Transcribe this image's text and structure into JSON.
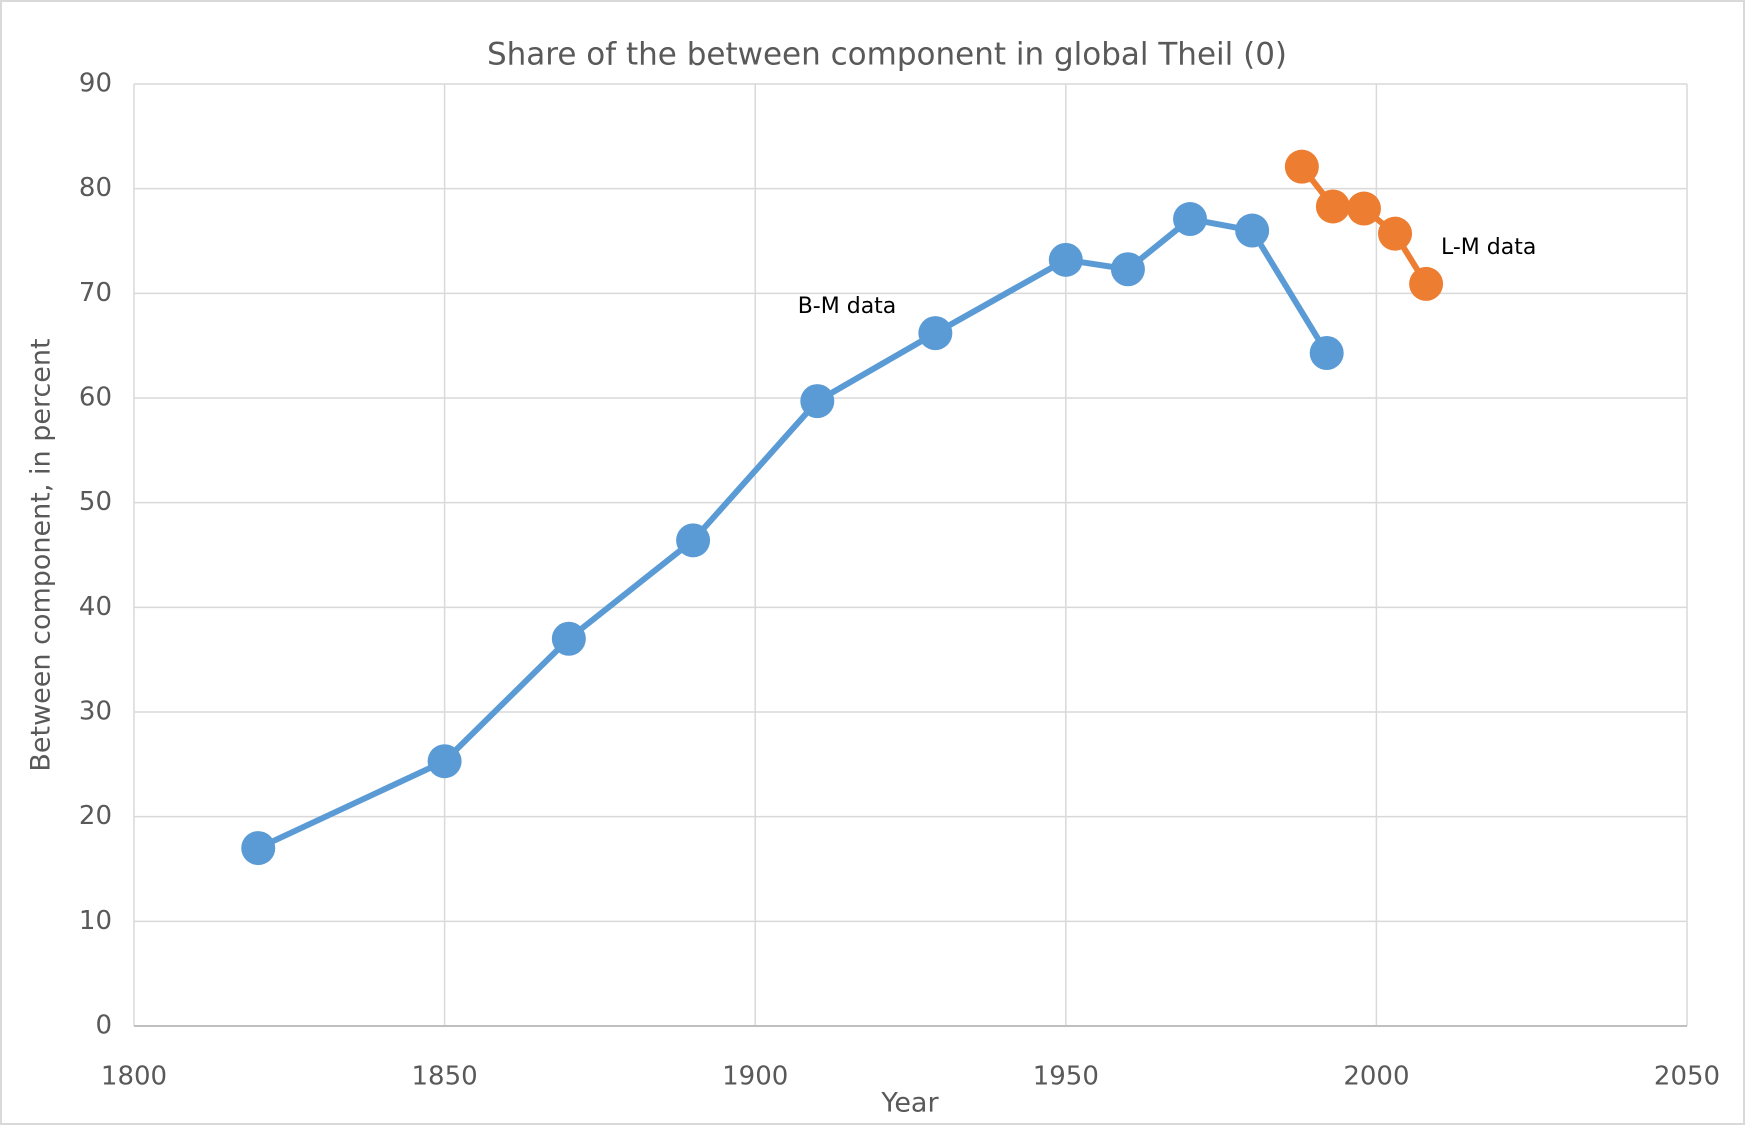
{
  "chart_data": {
    "type": "line",
    "title": "Share of the between component in global Theil (0)",
    "x_label": "Year",
    "y_label": "Between component, in percent",
    "series": [
      {
        "name": "B-M data",
        "color": "#5b9bd5",
        "x": [
          1820,
          1850,
          1870,
          1890,
          1910,
          1929,
          1950,
          1960,
          1970,
          1980,
          1992
        ],
        "values": [
          17,
          25.3,
          37,
          46.4,
          59.7,
          66.2,
          73.2,
          72.3,
          77.1,
          76,
          64.3
        ]
      },
      {
        "name": "L-M data",
        "color": "#ed7d31",
        "x": [
          1988,
          1993,
          1998,
          2003,
          2008
        ],
        "values": [
          82.1,
          78.3,
          78.1,
          75.7,
          70.9
        ]
      }
    ],
    "xlim": [
      1800,
      2050
    ],
    "xticks": [
      1800,
      1850,
      1900,
      1950,
      2000,
      2050
    ],
    "ylim": [
      0,
      90
    ],
    "yticks": [
      0,
      10,
      20,
      30,
      40,
      50,
      60,
      70,
      80,
      90
    ],
    "grid": true
  }
}
